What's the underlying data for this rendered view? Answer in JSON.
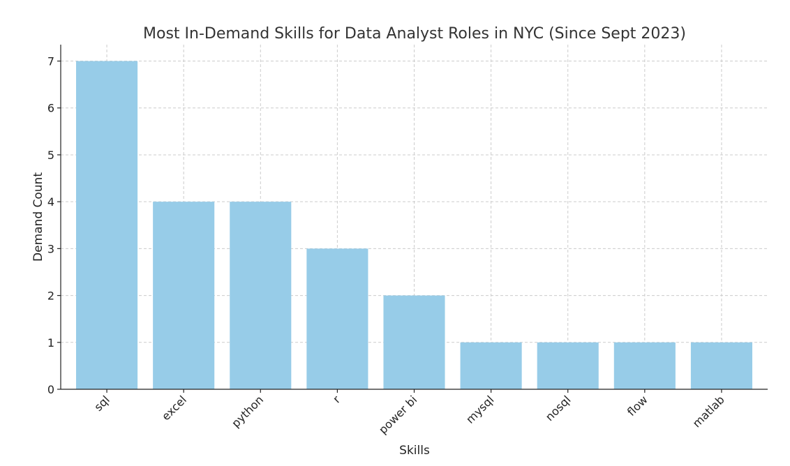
{
  "chart_data": {
    "type": "bar",
    "title": "Most In-Demand Skills for Data Analyst Roles in NYC (Since Sept 2023)",
    "xlabel": "Skills",
    "ylabel": "Demand Count",
    "categories": [
      "sql",
      "excel",
      "python",
      "r",
      "power bi",
      "mysql",
      "nosql",
      "flow",
      "matlab"
    ],
    "values": [
      7,
      4,
      4,
      3,
      2,
      1,
      1,
      1,
      1
    ],
    "ylim": [
      0,
      7.35
    ],
    "yticks": [
      "0",
      "1",
      "2",
      "3",
      "4",
      "5",
      "6",
      "7"
    ],
    "grid": true,
    "bar_color": "#97cce8"
  }
}
